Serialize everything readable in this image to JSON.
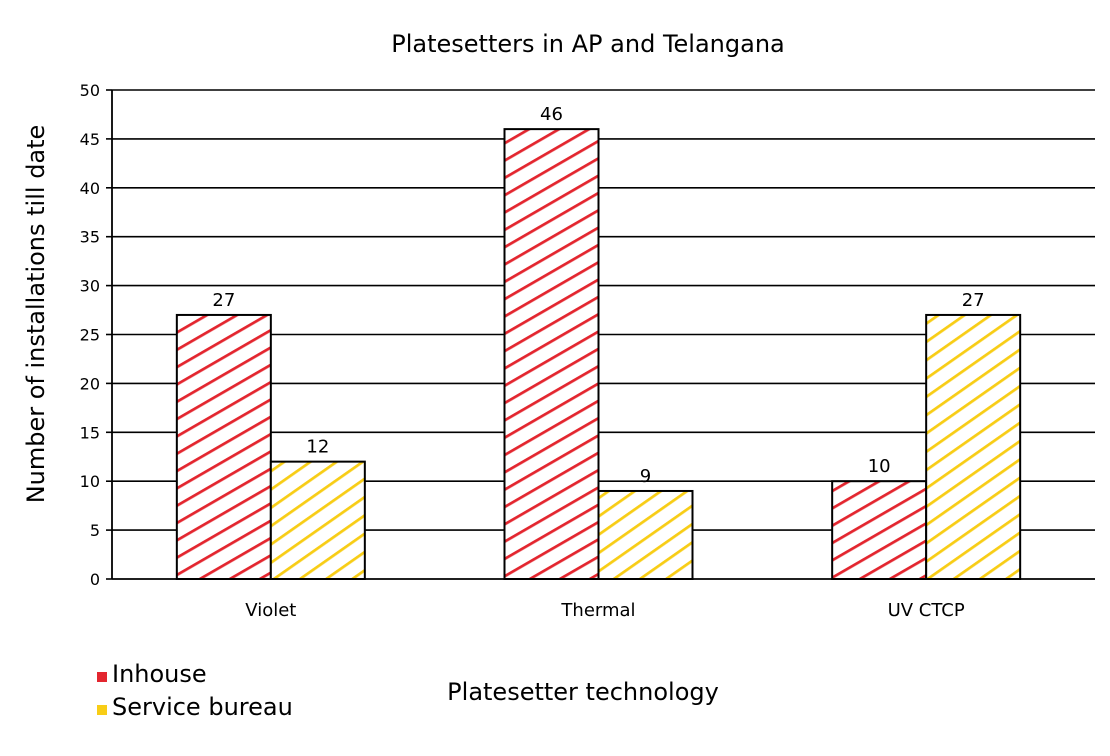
{
  "chart_data": {
    "type": "bar",
    "title": "Platesetters  in AP and Telangana",
    "xlabel": "Platesetter technology",
    "ylabel": "Number of installations till date",
    "categories": [
      "Violet",
      "Thermal",
      "UV CTCP"
    ],
    "series": [
      {
        "name": "Inhouse",
        "values": [
          27,
          46,
          10
        ],
        "color": "#e3262f"
      },
      {
        "name": "Service bureau",
        "values": [
          12,
          9,
          27
        ],
        "color": "#f8cd16"
      }
    ],
    "ylim": [
      0,
      50
    ],
    "yticks": [
      0,
      5,
      10,
      15,
      20,
      25,
      30,
      35,
      40,
      45,
      50
    ],
    "grid": true,
    "legend_position": "bottom-left",
    "fill_pattern": "diagonal-hatch"
  }
}
